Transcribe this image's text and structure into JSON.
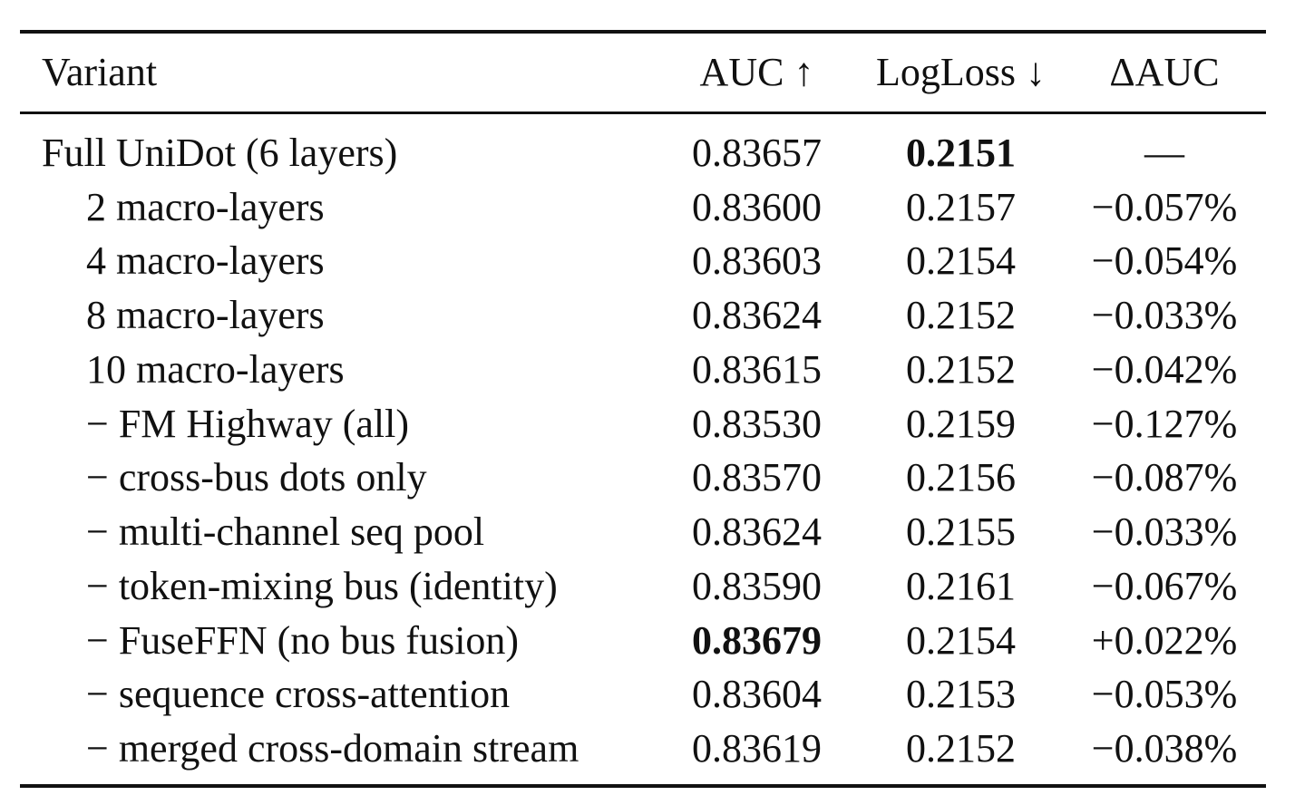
{
  "table": {
    "headers": {
      "variant": "Variant",
      "auc": "AUC ↑",
      "logloss": "LogLoss ↓",
      "dauc": "ΔAUC"
    },
    "rows": [
      {
        "variant": "Full UniDot (6 layers)",
        "auc": "0.83657",
        "logloss": "0.2151",
        "dauc": "—",
        "indent": false,
        "bold_auc": false,
        "bold_logloss": true
      },
      {
        "variant": "2 macro-layers",
        "auc": "0.83600",
        "logloss": "0.2157",
        "dauc": "−0.057%",
        "indent": true,
        "bold_auc": false,
        "bold_logloss": false
      },
      {
        "variant": "4 macro-layers",
        "auc": "0.83603",
        "logloss": "0.2154",
        "dauc": "−0.054%",
        "indent": true,
        "bold_auc": false,
        "bold_logloss": false
      },
      {
        "variant": "8 macro-layers",
        "auc": "0.83624",
        "logloss": "0.2152",
        "dauc": "−0.033%",
        "indent": true,
        "bold_auc": false,
        "bold_logloss": false
      },
      {
        "variant": "10 macro-layers",
        "auc": "0.83615",
        "logloss": "0.2152",
        "dauc": "−0.042%",
        "indent": true,
        "bold_auc": false,
        "bold_logloss": false
      },
      {
        "variant": "− FM Highway (all)",
        "auc": "0.83530",
        "logloss": "0.2159",
        "dauc": "−0.127%",
        "indent": true,
        "bold_auc": false,
        "bold_logloss": false
      },
      {
        "variant": "− cross-bus dots only",
        "auc": "0.83570",
        "logloss": "0.2156",
        "dauc": "−0.087%",
        "indent": true,
        "bold_auc": false,
        "bold_logloss": false
      },
      {
        "variant": "− multi-channel seq pool",
        "auc": "0.83624",
        "logloss": "0.2155",
        "dauc": "−0.033%",
        "indent": true,
        "bold_auc": false,
        "bold_logloss": false
      },
      {
        "variant": "− token-mixing bus (identity)",
        "auc": "0.83590",
        "logloss": "0.2161",
        "dauc": "−0.067%",
        "indent": true,
        "bold_auc": false,
        "bold_logloss": false
      },
      {
        "variant": "− FuseFFN (no bus fusion)",
        "auc": "0.83679",
        "logloss": "0.2154",
        "dauc": "+0.022%",
        "indent": true,
        "bold_auc": true,
        "bold_logloss": false
      },
      {
        "variant": "− sequence cross-attention",
        "auc": "0.83604",
        "logloss": "0.2153",
        "dauc": "−0.053%",
        "indent": true,
        "bold_auc": false,
        "bold_logloss": false
      },
      {
        "variant": "− merged cross-domain stream",
        "auc": "0.83619",
        "logloss": "0.2152",
        "dauc": "−0.038%",
        "indent": true,
        "bold_auc": false,
        "bold_logloss": false
      }
    ]
  }
}
